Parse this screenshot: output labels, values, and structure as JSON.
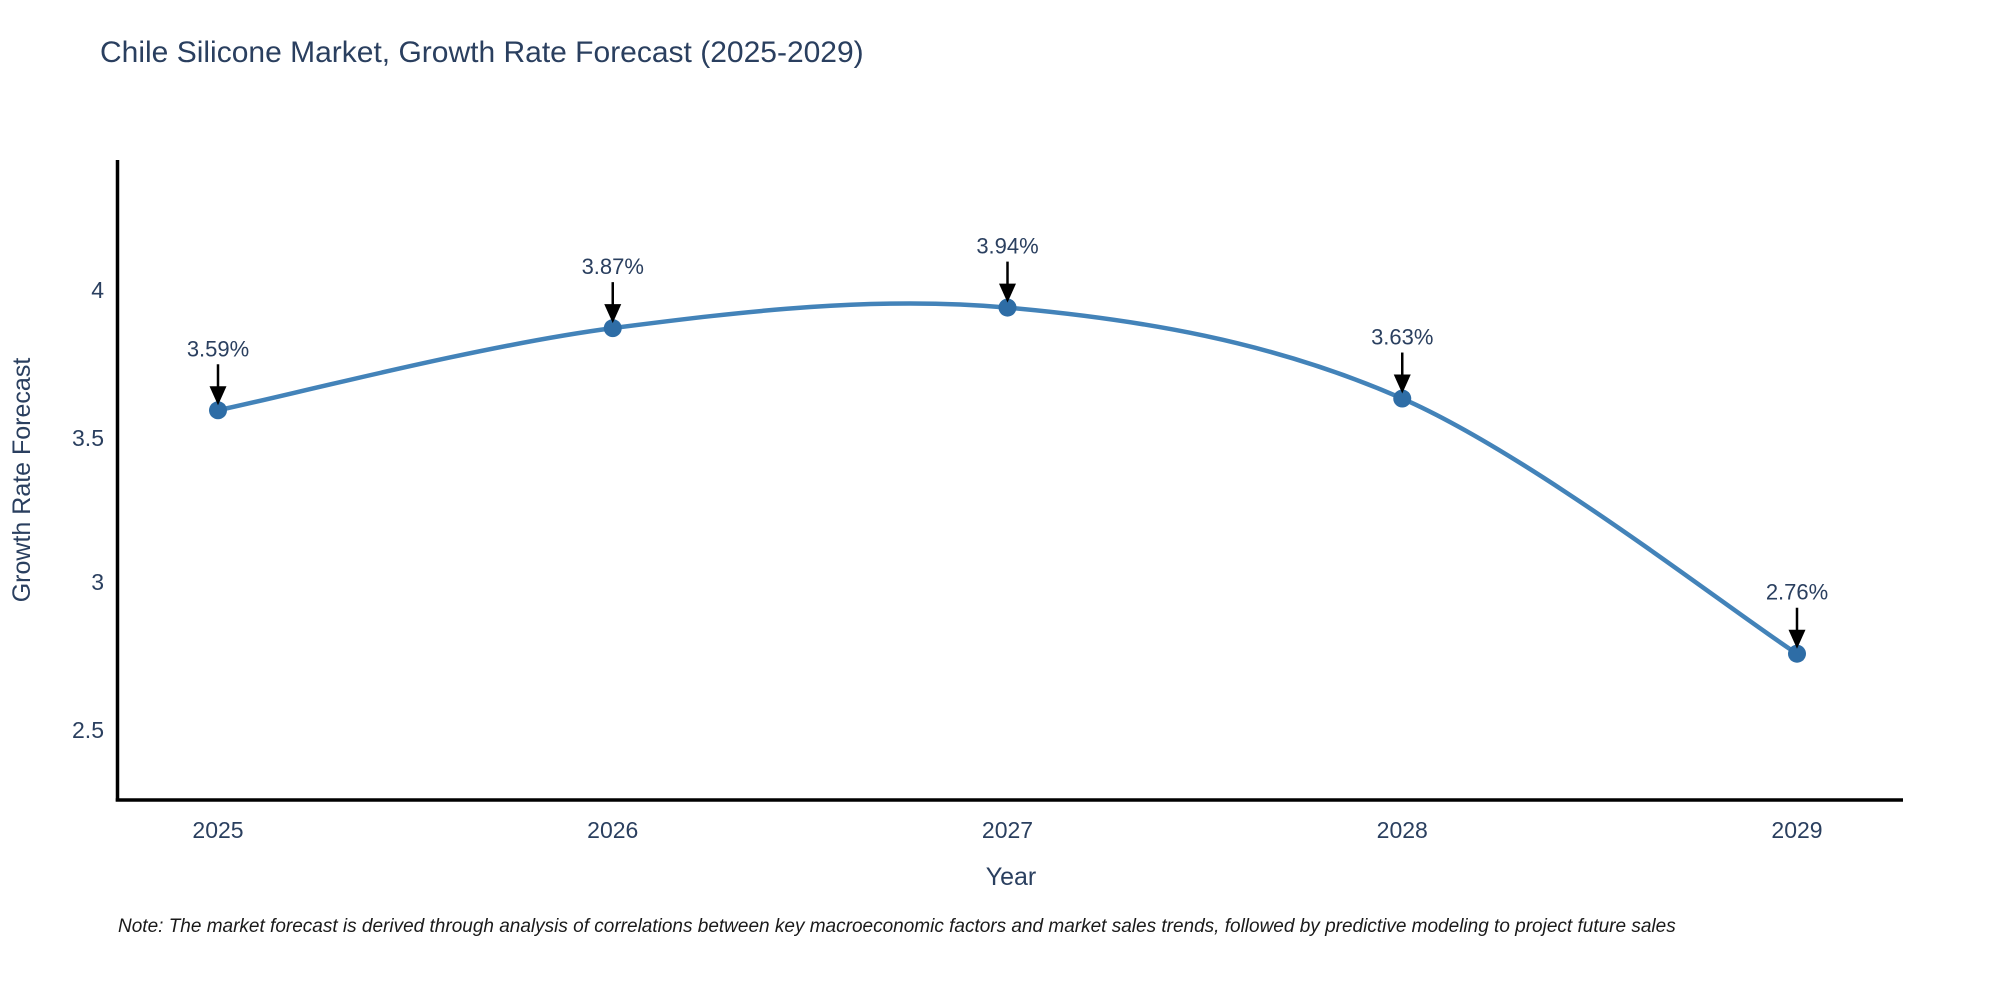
{
  "title": "Chile Silicone Market, Growth Rate Forecast (2025-2029)",
  "chart_data": {
    "type": "line",
    "x": [
      2025,
      2026,
      2027,
      2028,
      2029
    ],
    "values": [
      3.59,
      3.87,
      3.94,
      3.63,
      2.76
    ],
    "point_labels": [
      "3.59%",
      "3.87%",
      "3.94%",
      "3.63%",
      "2.76%"
    ],
    "title": "Chile Silicone Market, Growth Rate Forecast (2025-2029)",
    "xlabel": "Year",
    "ylabel": "Growth Rate Forecast",
    "xticks": [
      "2025",
      "2026",
      "2027",
      "2028",
      "2029"
    ],
    "yticks": [
      "2.5",
      "3",
      "3.5",
      "4"
    ],
    "xlim": [
      2024.74,
      2029.27
    ],
    "ylim": [
      2.26,
      4.44
    ],
    "grid": false,
    "legend": "none",
    "line_shape": "spline",
    "line_color": "#4383b9",
    "marker_color": "#2e6da6",
    "arrow_color": "#000000",
    "axis_color": "#000000"
  },
  "note": "Note: The market forecast is derived through analysis of correlations between key macroeconomic factors and market sales trends, followed by predictive modeling to project future sales"
}
